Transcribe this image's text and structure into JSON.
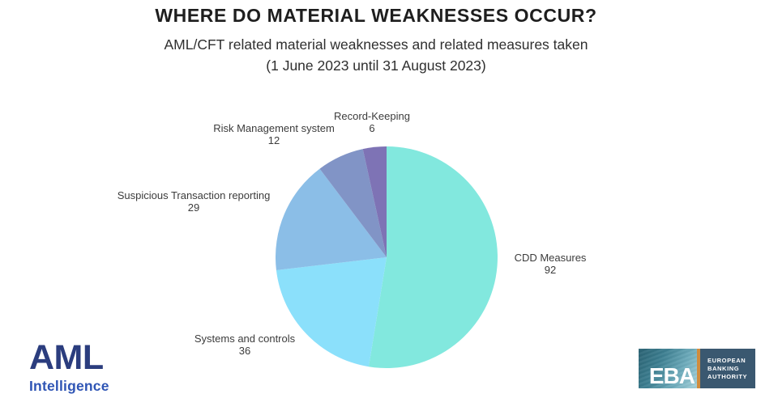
{
  "header": {
    "title": "WHERE DO MATERIAL WEAKNESSES OCCUR?",
    "subtitle_line1": "AML/CFT related material weaknesses and related measures taken",
    "subtitle_line2": "(1 June 2023 until 31 August 2023)"
  },
  "chart_data": {
    "type": "pie",
    "title": "WHERE DO MATERIAL WEAKNESSES OCCUR?",
    "subtitle": "AML/CFT related material weaknesses and related measures taken (1 June 2023 until 31 August 2023)",
    "total": 175,
    "start_angle_deg": 0,
    "direction": "clockwise",
    "legend_position": "labels-outside",
    "slices": [
      {
        "label": "CDD Measures",
        "value": 92,
        "color": "#82E8DE"
      },
      {
        "label": "Systems and controls",
        "value": 36,
        "color": "#8BE0FB"
      },
      {
        "label": "Suspicious Transaction reporting",
        "value": 29,
        "color": "#8BBEE7"
      },
      {
        "label": "Risk Management system",
        "value": 12,
        "color": "#8194C6"
      },
      {
        "label": "Record-Keeping",
        "value": 6,
        "color": "#7E73B5"
      }
    ]
  },
  "logos": {
    "aml": {
      "primary": "AML",
      "secondary": "Intelligence",
      "primary_color": "#2B3D7E",
      "secondary_color": "#2F55B5"
    },
    "eba": {
      "acronym": "EBA",
      "name_line1": "EUROPEAN",
      "name_line2": "BANKING",
      "name_line3": "AUTHORITY",
      "accent_color": "#D08C3E",
      "panel_color": "#3A5870"
    }
  }
}
